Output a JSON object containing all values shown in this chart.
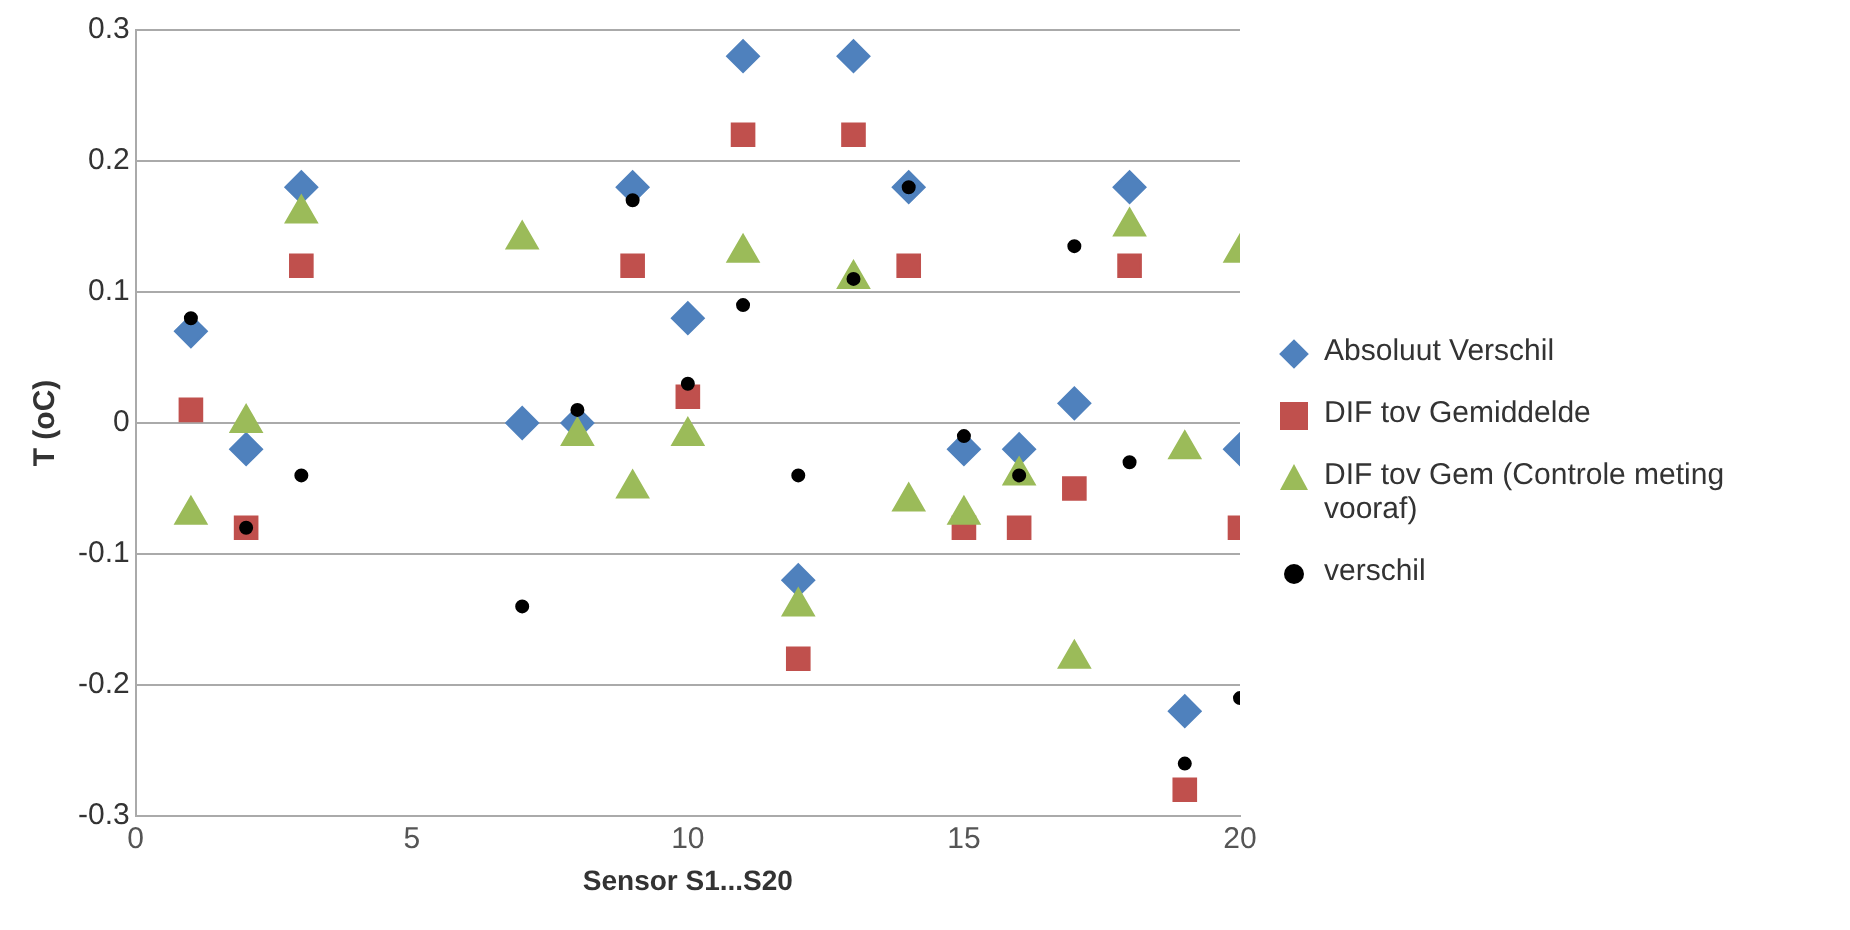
{
  "chart_data": {
    "type": "scatter",
    "xlabel": "Sensor S1...S20",
    "ylabel": "T (oC)",
    "x": [
      1,
      2,
      3,
      7,
      8,
      9,
      10,
      11,
      12,
      13,
      14,
      15,
      16,
      17,
      18,
      19,
      20
    ],
    "xlim": [
      0,
      20
    ],
    "xticks": [
      0,
      5,
      10,
      15,
      20
    ],
    "ylim": [
      -0.3,
      0.3
    ],
    "yticks": [
      -0.3,
      -0.2,
      -0.1,
      0,
      0.1,
      0.2,
      0.3
    ],
    "grid": "y",
    "legend": "right",
    "series": [
      {
        "name": "Absoluut Verschil",
        "color": "#4f81bd",
        "marker": "diamond",
        "values": [
          0.07,
          -0.02,
          0.18,
          0,
          0,
          0.18,
          0.08,
          0.28,
          -0.12,
          0.28,
          0.18,
          -0.02,
          -0.02,
          0.015,
          0.18,
          -0.22,
          -0.02
        ]
      },
      {
        "name": "DIF tov Gemiddelde",
        "color": "#c0504d",
        "marker": "square",
        "values": [
          0.01,
          -0.08,
          0.12,
          null,
          null,
          0.12,
          0.02,
          0.22,
          -0.18,
          0.22,
          0.12,
          -0.08,
          -0.08,
          -0.05,
          0.12,
          -0.28,
          -0.08
        ]
      },
      {
        "name": "DIF tov Gem (Controle meting vooraf)",
        "color": "#9bbb59",
        "marker": "triangle",
        "values": [
          -0.07,
          0,
          0.16,
          0.14,
          -0.01,
          -0.05,
          -0.01,
          0.13,
          -0.14,
          0.11,
          -0.06,
          -0.07,
          -0.04,
          -0.18,
          0.15,
          -0.02,
          0.13
        ]
      },
      {
        "name": "verschil",
        "color": "#000000",
        "marker": "circle",
        "values": [
          0.08,
          -0.08,
          -0.04,
          -0.14,
          0.01,
          0.17,
          0.03,
          0.09,
          -0.04,
          0.11,
          0.18,
          -0.01,
          -0.04,
          0.135,
          -0.03,
          -0.26,
          -0.21
        ]
      }
    ]
  }
}
